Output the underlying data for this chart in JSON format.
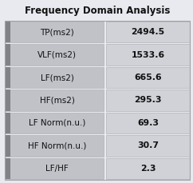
{
  "title": "Frequency Domain Analysis",
  "rows": [
    {
      "label": "TP(ms2)",
      "value": "2494.5"
    },
    {
      "label": "VLF(ms2)",
      "value": "1533.6"
    },
    {
      "label": "LF(ms2)",
      "value": "665.6"
    },
    {
      "label": "HF(ms2)",
      "value": "295.3"
    },
    {
      "label": "LF Norm(n.u.)",
      "value": "69.3"
    },
    {
      "label": "HF Norm(n.u.)",
      "value": "30.7"
    },
    {
      "label": "LF/HF",
      "value": "2.3"
    }
  ],
  "bg_color": "#e8eaf0",
  "title_bg": "#e8eaf0",
  "cell_label_color": "#c0c2c8",
  "cell_value_color": "#d0d2d8",
  "stripe_color": "#808288",
  "border_color": "#b0b2b8",
  "outer_border_color": "#a0a2a8",
  "text_color": "#111111",
  "title_color": "#111111",
  "title_fontsize": 8.5,
  "cell_fontsize": 7.5,
  "value_fontsize": 7.8
}
